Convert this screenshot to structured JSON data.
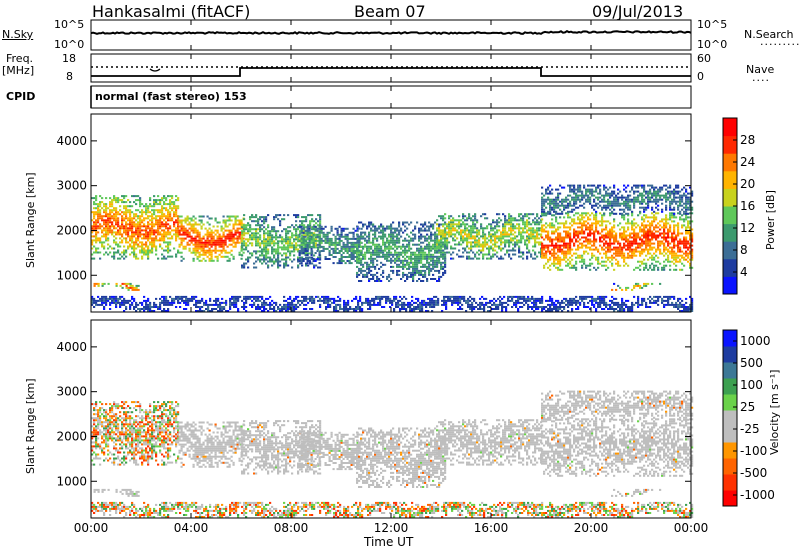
{
  "header": {
    "station": "Hankasalmi (fitACF)",
    "beam": "Beam 07",
    "date": "09/Jul/2013"
  },
  "top_panels": {
    "n_sky": {
      "label": "N.Sky",
      "ticks": [
        "10^5",
        "10^0"
      ]
    },
    "n_search": {
      "label": "N.Search",
      "ticks": [
        "10^5",
        "10^0"
      ],
      "linestyle": "dotted"
    },
    "freq": {
      "label_line1": "Freq.",
      "label_line2": "[MHz]",
      "ticks": [
        "18",
        "8"
      ]
    },
    "nave": {
      "label": "Nave",
      "ticks": [
        "60",
        "0"
      ],
      "linestyle": "dotted"
    },
    "cpid": {
      "label": "CPID",
      "text": "normal (fast stereo) 153"
    }
  },
  "colors": {
    "power_scale": [
      "#0a14ff",
      "#1e3ca0",
      "#3c6e96",
      "#3c9a6e",
      "#5fc85a",
      "#c8d21e",
      "#ffb400",
      "#ff7800",
      "#ff2800",
      "#ff0000"
    ],
    "velocity_scale": [
      "#0a14ff",
      "#1e3ca0",
      "#3c7896",
      "#3ca050",
      "#6ad24a",
      "#bebebe",
      "#bebebe",
      "#ff9600",
      "#ff6400",
      "#ff3200",
      "#ff0000"
    ],
    "ground_scatter": "#bebebe"
  },
  "chart_data": [
    {
      "type": "heatmap",
      "name": "power",
      "ylabel": "Slant Range [km]",
      "ylim": [
        180,
        4600
      ],
      "yticks": [
        "1000",
        "2000",
        "3000",
        "4000"
      ],
      "colorbar_label": "Power [dB]",
      "colorbar_ticks": [
        "4",
        "8",
        "12",
        "16",
        "20",
        "24",
        "28"
      ],
      "colorbar_range": [
        0,
        32
      ]
    },
    {
      "type": "heatmap",
      "name": "velocity",
      "ylabel": "Slant Range [km]",
      "ylim": [
        180,
        4600
      ],
      "yticks": [
        "1000",
        "2000",
        "3000",
        "4000"
      ],
      "colorbar_label": "Velocity [m s⁻¹]",
      "colorbar_ticks": [
        "1000",
        "500",
        "100",
        "25",
        "-25",
        "-100",
        "-500",
        "-1000"
      ]
    }
  ],
  "x_axis": {
    "label": "Time UT",
    "ticks": [
      "00:00",
      "04:00",
      "08:00",
      "12:00",
      "16:00",
      "20:00",
      "00:00"
    ],
    "range_hours": [
      0,
      24
    ]
  },
  "scatter_bands": [
    {
      "t0": 0.0,
      "t1": 3.5,
      "r0": 1350,
      "r1": 2750,
      "p": 26,
      "spread": 6,
      "vel": "mix"
    },
    {
      "t0": 3.5,
      "t1": 6.1,
      "r0": 1300,
      "r1": 2300,
      "p": 28,
      "spread": 5,
      "vel": "gs"
    },
    {
      "t0": 6.0,
      "t1": 9.2,
      "r0": 1150,
      "r1": 2350,
      "p": 16,
      "spread": 7,
      "vel": "gs"
    },
    {
      "t0": 8.3,
      "t1": 10.8,
      "r0": 1250,
      "r1": 2100,
      "p": 12,
      "spread": 6,
      "vel": "gs"
    },
    {
      "t0": 10.6,
      "t1": 14.2,
      "r0": 850,
      "r1": 2200,
      "p": 13,
      "spread": 6,
      "vel": "gs"
    },
    {
      "t0": 13.8,
      "t1": 18.0,
      "r0": 1350,
      "r1": 2350,
      "p": 18,
      "spread": 8,
      "vel": "gs"
    },
    {
      "t0": 18.0,
      "t1": 24.0,
      "r0": 1100,
      "r1": 2400,
      "p": 28,
      "spread": 4,
      "vel": "gs"
    },
    {
      "t0": 18.0,
      "t1": 24.0,
      "r0": 2350,
      "r1": 3000,
      "p": 10,
      "spread": 6,
      "vel": "gs"
    },
    {
      "t0": 0.1,
      "t1": 1.9,
      "r0": 650,
      "r1": 830,
      "p": 27,
      "spread": 3,
      "vel": "gs"
    },
    {
      "t0": 20.8,
      "t1": 22.8,
      "r0": 650,
      "r1": 830,
      "p": 24,
      "spread": 4,
      "vel": "gs"
    },
    {
      "t0": 0.0,
      "t1": 24.0,
      "r0": 180,
      "r1": 520,
      "p": 6,
      "spread": 5,
      "vel": "mix"
    }
  ]
}
